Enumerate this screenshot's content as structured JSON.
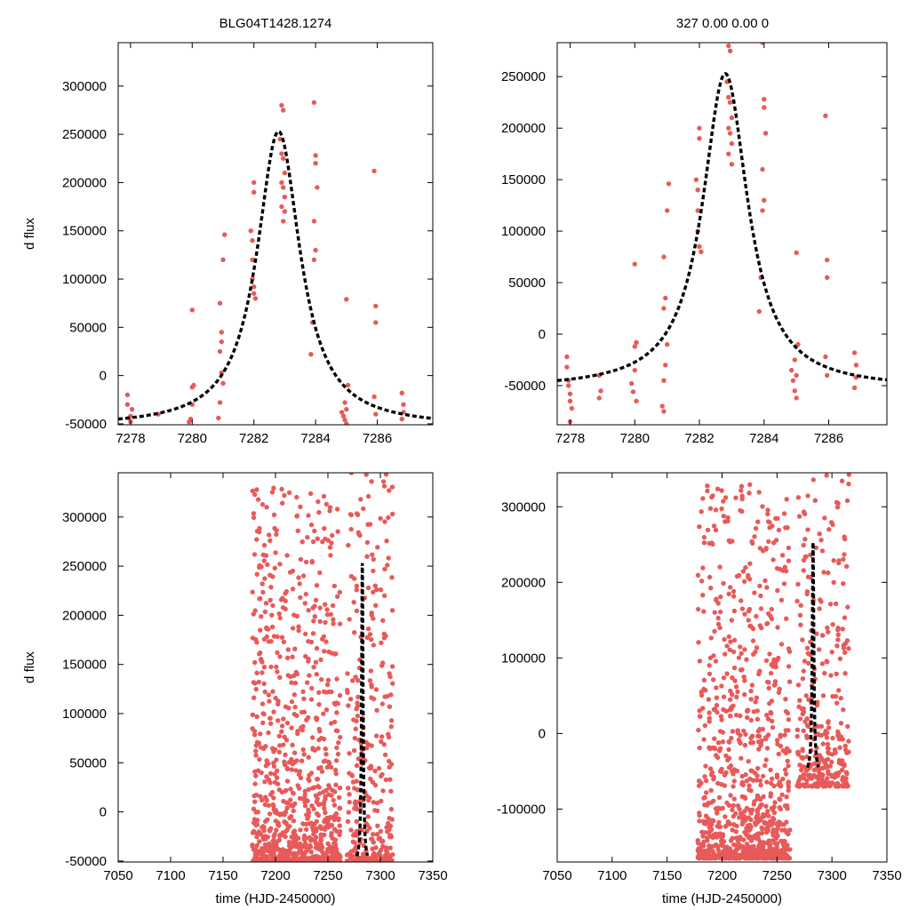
{
  "header": {
    "left_title": "BLG04T1428.1274",
    "right_title": "327   0.00   0.00   0"
  },
  "colors": {
    "points": "#e85a5a",
    "model": "#000000",
    "axes": "#000000"
  },
  "chart_data": [
    {
      "id": "panel-top-left",
      "type": "scatter",
      "title": "BLG04T1428.1274",
      "xlabel": "",
      "ylabel": "d flux",
      "xlim": [
        7277.6,
        7287.8
      ],
      "ylim": [
        -51000,
        345000
      ],
      "xticks": [
        7278,
        7280,
        7282,
        7284,
        7286
      ],
      "yticks": [
        -50000,
        0,
        50000,
        100000,
        150000,
        200000,
        250000,
        300000
      ],
      "ytick_side": "left",
      "grid": false,
      "model": {
        "t0": 7282.8,
        "base": -53000,
        "peak": 253000,
        "width": 0.85,
        "range": [
          7277.6,
          7287.8
        ]
      },
      "points": [
        [
          7277.9,
          -20000
        ],
        [
          7277.9,
          -30000
        ],
        [
          7277.95,
          -44000
        ],
        [
          7278.0,
          -42000
        ],
        [
          7278.0,
          -48000
        ],
        [
          7278.05,
          -35000
        ],
        [
          7278.9,
          -40000
        ],
        [
          7279.9,
          -48000
        ],
        [
          7279.95,
          -45000
        ],
        [
          7280.0,
          -30000
        ],
        [
          7280.0,
          -12000
        ],
        [
          7280.05,
          -10000
        ],
        [
          7280.0,
          68000
        ],
        [
          7280.85,
          -44000
        ],
        [
          7280.9,
          -28000
        ],
        [
          7280.9,
          25000
        ],
        [
          7280.95,
          35000
        ],
        [
          7280.95,
          45000
        ],
        [
          7280.9,
          75000
        ],
        [
          7280.95,
          3000
        ],
        [
          7281.0,
          -8000
        ],
        [
          7281.0,
          120000
        ],
        [
          7281.05,
          146000
        ],
        [
          7281.9,
          150000
        ],
        [
          7281.95,
          140000
        ],
        [
          7281.95,
          120000
        ],
        [
          7282.0,
          200000
        ],
        [
          7282.0,
          190000
        ],
        [
          7281.95,
          100000
        ],
        [
          7282.0,
          85000
        ],
        [
          7282.05,
          80000
        ],
        [
          7282.0,
          92000
        ],
        [
          7282.85,
          245000
        ],
        [
          7282.9,
          280000
        ],
        [
          7282.95,
          275000
        ],
        [
          7282.9,
          230000
        ],
        [
          7282.95,
          225000
        ],
        [
          7283.0,
          210000
        ],
        [
          7282.9,
          200000
        ],
        [
          7282.95,
          195000
        ],
        [
          7283.0,
          185000
        ],
        [
          7282.9,
          175000
        ],
        [
          7283.0,
          170000
        ],
        [
          7282.95,
          160000
        ],
        [
          7283.85,
          22000
        ],
        [
          7283.9,
          55000
        ],
        [
          7283.95,
          283000
        ],
        [
          7284.0,
          228000
        ],
        [
          7284.0,
          220000
        ],
        [
          7284.05,
          195000
        ],
        [
          7283.95,
          160000
        ],
        [
          7284.0,
          130000
        ],
        [
          7283.95,
          120000
        ],
        [
          7284.85,
          -38000
        ],
        [
          7284.9,
          -42000
        ],
        [
          7284.95,
          -46000
        ],
        [
          7285.0,
          -50000
        ],
        [
          7285.0,
          -35000
        ],
        [
          7284.95,
          -28000
        ],
        [
          7285.05,
          -10000
        ],
        [
          7285.0,
          79000
        ],
        [
          7285.9,
          212000
        ],
        [
          7285.95,
          72000
        ],
        [
          7285.95,
          55000
        ],
        [
          7285.9,
          -22000
        ],
        [
          7285.95,
          -40000
        ],
        [
          7286.8,
          -18000
        ],
        [
          7286.85,
          -30000
        ],
        [
          7286.85,
          -38000
        ],
        [
          7286.8,
          -45000
        ]
      ]
    },
    {
      "id": "panel-top-right",
      "type": "scatter",
      "title": "327   0.00   0.00   0",
      "xlabel": "",
      "ylabel": "",
      "xlim": [
        7277.6,
        7287.8
      ],
      "ylim": [
        -88000,
        283000
      ],
      "xticks": [
        7278,
        7280,
        7282,
        7284,
        7286
      ],
      "yticks": [
        -50000,
        0,
        50000,
        100000,
        150000,
        200000,
        250000
      ],
      "ytick_side": "left",
      "grid": false,
      "model": {
        "t0": 7282.8,
        "base": -53000,
        "peak": 253000,
        "width": 0.85,
        "range": [
          7277.6,
          7287.8
        ]
      },
      "points": [
        [
          7277.9,
          -22000
        ],
        [
          7277.9,
          -32000
        ],
        [
          7277.95,
          -45000
        ],
        [
          7278.0,
          -58000
        ],
        [
          7278.0,
          -65000
        ],
        [
          7278.05,
          -72000
        ],
        [
          7278.0,
          -85000
        ],
        [
          7277.95,
          -50000
        ],
        [
          7278.9,
          -40000
        ],
        [
          7278.95,
          -55000
        ],
        [
          7278.9,
          -62000
        ],
        [
          7279.9,
          -48000
        ],
        [
          7279.95,
          -56000
        ],
        [
          7280.0,
          -35000
        ],
        [
          7280.0,
          -12000
        ],
        [
          7280.05,
          -8000
        ],
        [
          7280.0,
          68000
        ],
        [
          7280.05,
          -65000
        ],
        [
          7280.85,
          -70000
        ],
        [
          7280.9,
          -75000
        ],
        [
          7280.9,
          -45000
        ],
        [
          7280.95,
          -30000
        ],
        [
          7280.9,
          25000
        ],
        [
          7280.95,
          35000
        ],
        [
          7281.0,
          -10000
        ],
        [
          7281.0,
          120000
        ],
        [
          7281.05,
          146000
        ],
        [
          7280.9,
          75000
        ],
        [
          7281.9,
          150000
        ],
        [
          7281.95,
          140000
        ],
        [
          7281.95,
          120000
        ],
        [
          7282.0,
          200000
        ],
        [
          7282.0,
          190000
        ],
        [
          7281.95,
          100000
        ],
        [
          7282.0,
          85000
        ],
        [
          7282.05,
          80000
        ],
        [
          7282.85,
          245000
        ],
        [
          7282.9,
          280000
        ],
        [
          7282.95,
          275000
        ],
        [
          7282.9,
          230000
        ],
        [
          7282.95,
          225000
        ],
        [
          7283.0,
          210000
        ],
        [
          7282.9,
          200000
        ],
        [
          7282.95,
          195000
        ],
        [
          7283.0,
          185000
        ],
        [
          7282.9,
          175000
        ],
        [
          7283.0,
          165000
        ],
        [
          7283.85,
          22000
        ],
        [
          7283.9,
          55000
        ],
        [
          7283.95,
          283000
        ],
        [
          7284.0,
          228000
        ],
        [
          7284.0,
          220000
        ],
        [
          7284.05,
          195000
        ],
        [
          7283.95,
          160000
        ],
        [
          7284.0,
          130000
        ],
        [
          7283.95,
          120000
        ],
        [
          7284.85,
          -35000
        ],
        [
          7284.9,
          -45000
        ],
        [
          7284.95,
          -55000
        ],
        [
          7285.0,
          -62000
        ],
        [
          7285.0,
          -40000
        ],
        [
          7284.95,
          -25000
        ],
        [
          7285.05,
          -10000
        ],
        [
          7285.0,
          79000
        ],
        [
          7285.9,
          212000
        ],
        [
          7285.95,
          72000
        ],
        [
          7285.95,
          55000
        ],
        [
          7285.9,
          -22000
        ],
        [
          7285.95,
          -40000
        ],
        [
          7286.8,
          -18000
        ],
        [
          7286.85,
          -30000
        ],
        [
          7286.85,
          -42000
        ],
        [
          7286.8,
          -52000
        ]
      ]
    },
    {
      "id": "panel-bottom-left",
      "type": "scatter",
      "title": "",
      "xlabel": "time (HJD-2450000)",
      "ylabel": "d flux",
      "xlim": [
        7050,
        7350
      ],
      "ylim": [
        -51000,
        345000
      ],
      "xticks": [
        7050,
        7100,
        7150,
        7200,
        7250,
        7300,
        7350
      ],
      "yticks": [
        -50000,
        0,
        50000,
        100000,
        150000,
        200000,
        250000,
        300000
      ],
      "ytick_side": "left",
      "grid": false,
      "model": {
        "t0": 7282.8,
        "base": -53000,
        "peak": 253000,
        "width": 0.85,
        "range": [
          7277.6,
          7287.8
        ]
      },
      "seasons": [
        {
          "x": [
            7178,
            7262
          ],
          "n": 950,
          "ymin": -50000,
          "ymax": 330000,
          "concentration": 2.8,
          "seed": 7
        },
        {
          "x": [
            7268,
            7312
          ],
          "n": 330,
          "ymin": -50000,
          "ymax": 345000,
          "concentration": 2.8,
          "seed": 13
        }
      ]
    },
    {
      "id": "panel-bottom-right",
      "type": "scatter",
      "title": "",
      "xlabel": "time (HJD-2450000)",
      "ylabel": "",
      "xlim": [
        7050,
        7350
      ],
      "ylim": [
        -170000,
        345000
      ],
      "xticks": [
        7050,
        7100,
        7150,
        7200,
        7250,
        7300,
        7350
      ],
      "yticks": [
        -100000,
        0,
        100000,
        200000,
        300000
      ],
      "ytick_side": "left",
      "grid": false,
      "model": {
        "t0": 7282.8,
        "base": -53000,
        "peak": 253000,
        "width": 0.85,
        "range": [
          7277.6,
          7287.8
        ]
      },
      "seasons": [
        {
          "x": [
            7178,
            7262
          ],
          "n": 1000,
          "ymin": -165000,
          "ymax": 330000,
          "concentration": 3.2,
          "seed": 21
        },
        {
          "x": [
            7268,
            7316
          ],
          "n": 330,
          "ymin": -70000,
          "ymax": 345000,
          "concentration": 3.0,
          "seed": 33
        }
      ]
    }
  ]
}
